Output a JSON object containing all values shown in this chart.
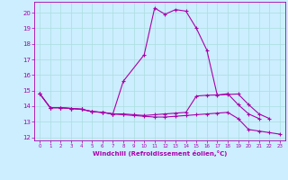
{
  "xlabel": "Windchill (Refroidissement éolien,°C)",
  "bg_color": "#cceeff",
  "grid_color": "#aadddd",
  "line_color": "#aa00aa",
  "xlim": [
    -0.5,
    23.5
  ],
  "ylim": [
    11.8,
    20.7
  ],
  "yticks": [
    12,
    13,
    14,
    15,
    16,
    17,
    18,
    19,
    20
  ],
  "xticks": [
    0,
    1,
    2,
    3,
    4,
    5,
    6,
    7,
    8,
    9,
    10,
    11,
    12,
    13,
    14,
    15,
    16,
    17,
    18,
    19,
    20,
    21,
    22,
    23
  ],
  "line1_x": [
    0,
    1,
    2,
    3,
    4,
    5,
    6,
    7,
    8,
    10,
    11,
    12,
    13,
    14,
    15,
    16,
    17,
    18,
    19,
    20,
    21
  ],
  "line1_y": [
    14.8,
    13.9,
    13.9,
    13.85,
    13.8,
    13.65,
    13.6,
    13.5,
    15.6,
    17.3,
    20.3,
    19.9,
    20.2,
    20.1,
    19.0,
    17.6,
    14.7,
    14.8,
    14.1,
    13.5,
    13.2
  ],
  "line2_x": [
    0,
    1,
    2,
    3,
    4,
    5,
    6,
    7,
    8,
    9,
    10,
    11,
    12,
    13,
    14,
    15,
    16,
    17,
    18,
    19,
    20,
    21,
    22
  ],
  "line2_y": [
    14.8,
    13.9,
    13.9,
    13.85,
    13.8,
    13.65,
    13.6,
    13.5,
    13.5,
    13.45,
    13.4,
    13.45,
    13.5,
    13.55,
    13.6,
    14.65,
    14.7,
    14.72,
    14.75,
    14.78,
    14.1,
    13.5,
    13.2
  ],
  "line3_x": [
    0,
    1,
    2,
    3,
    4,
    5,
    6,
    7,
    8,
    9,
    10,
    11,
    12,
    13,
    14,
    15,
    16,
    17,
    18,
    19,
    20,
    21,
    22,
    23
  ],
  "line3_y": [
    14.8,
    13.9,
    13.9,
    13.85,
    13.8,
    13.65,
    13.6,
    13.5,
    13.45,
    13.4,
    13.35,
    13.3,
    13.3,
    13.35,
    13.4,
    13.45,
    13.5,
    13.55,
    13.6,
    13.2,
    12.5,
    12.4,
    12.3,
    12.2
  ]
}
